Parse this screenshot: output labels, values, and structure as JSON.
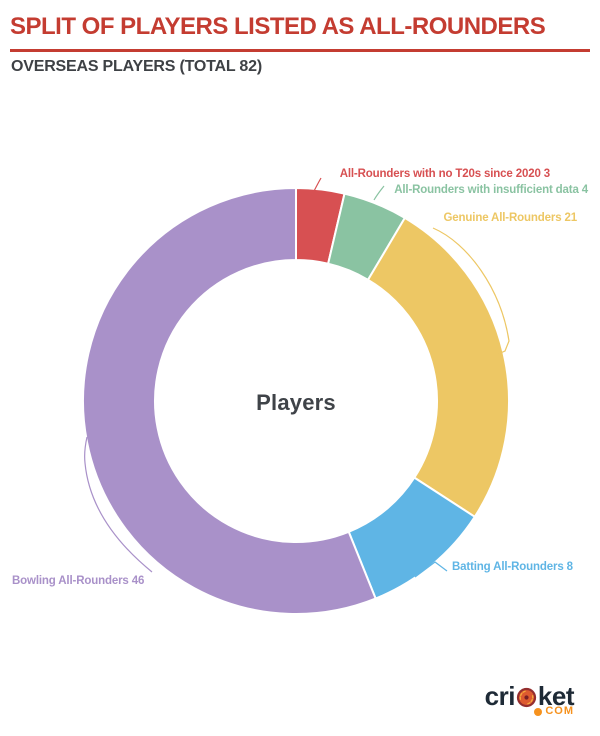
{
  "header": {
    "title": "SPLIT OF PLAYERS LISTED AS ALL-ROUNDERS",
    "subtitle": "OVERSEAS PLAYERS (TOTAL 82)",
    "title_color": "#c43c31",
    "subtitle_color": "#3e4145"
  },
  "chart_data": {
    "type": "pie",
    "subtype": "donut",
    "center_label": "Players",
    "total": 82,
    "start_angle_deg": 0,
    "direction": "clockwise",
    "inner_radius_ratio": 0.66,
    "legend_position": "callout-labels",
    "series": [
      {
        "label": "All-Rounders with no T20s since 2020",
        "value": 3,
        "color": "#d75052"
      },
      {
        "label": "All-Rounders with insufficient data",
        "value": 4,
        "color": "#8ac3a2"
      },
      {
        "label": "Genuine All-Rounders",
        "value": 21,
        "color": "#edc764"
      },
      {
        "label": "Batting All-Rounders",
        "value": 8,
        "color": "#5fb5e5"
      },
      {
        "label": "Bowling All-Rounders",
        "value": 46,
        "color": "#a991c9"
      }
    ]
  },
  "logo": {
    "brand_left": "cri",
    "brand_right": "ket",
    "tld": "COM",
    "navy": "#1e2a36",
    "orange": "#f6921e",
    "ball_red": "#d94f2b"
  }
}
